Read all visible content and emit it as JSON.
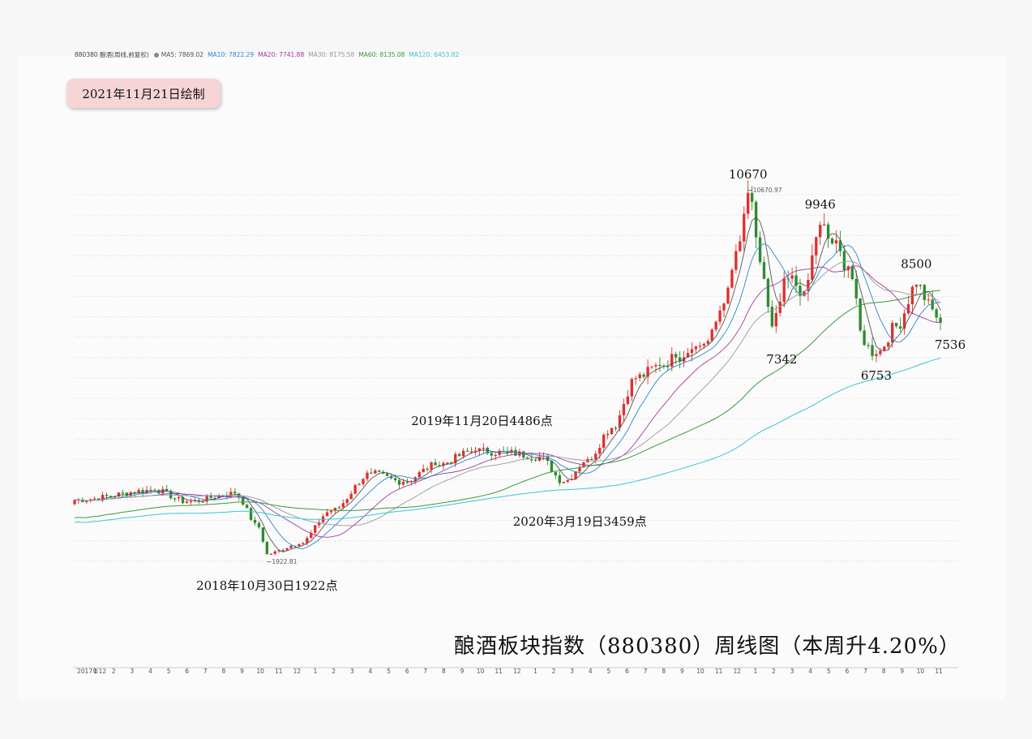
{
  "header": {
    "symbol": "880380 酿酒(周线,前复权)",
    "ma": [
      {
        "label": "MA5: 7869.02",
        "color": "#555555"
      },
      {
        "label": "MA10: 7822.29",
        "color": "#2a86d0"
      },
      {
        "label": "MA20: 7741.88",
        "color": "#a03a9e"
      },
      {
        "label": "MA30: 8175.58",
        "color": "#999999"
      },
      {
        "label": "MA60: 8135.08",
        "color": "#3a9a3a"
      },
      {
        "label": "MA120: 6453.82",
        "color": "#36c7d6"
      }
    ]
  },
  "badge": "2021年11月21日绘制",
  "title": "酿酒板块指数（880380）周线图（本周升4.20%）",
  "chart_data": {
    "type": "candlestick",
    "xlabel": "",
    "ylabel": "",
    "ylim": [
      0,
      11500
    ],
    "grid": true,
    "x_ticks": [
      "2017年12",
      "1",
      "2",
      "3",
      "4",
      "5",
      "6",
      "7",
      "8",
      "9",
      "10",
      "11",
      "12",
      "1",
      "2",
      "3",
      "4",
      "5",
      "6",
      "7",
      "8",
      "9",
      "10",
      "11",
      "12",
      "1",
      "2",
      "3",
      "4",
      "5",
      "6",
      "7",
      "8",
      "9",
      "10",
      "11",
      "12",
      "1",
      "2",
      "3",
      "4",
      "5",
      "6",
      "7",
      "8",
      "9",
      "10",
      "11"
    ],
    "up_color": "#e0302e",
    "down_color": "#2e8b2e",
    "close_series": [
      {
        "week": 0,
        "close": 3260
      },
      {
        "week": 20,
        "close": 3500
      },
      {
        "week": 28,
        "close": 3220
      },
      {
        "week": 40,
        "close": 3420
      },
      {
        "week": 46,
        "close": 2600
      },
      {
        "week": 48,
        "close": 1960
      },
      {
        "week": 56,
        "close": 2200
      },
      {
        "week": 64,
        "close": 3000
      },
      {
        "week": 74,
        "close": 3900
      },
      {
        "week": 82,
        "close": 3700
      },
      {
        "week": 90,
        "close": 4100
      },
      {
        "week": 100,
        "close": 4450
      },
      {
        "week": 108,
        "close": 4400
      },
      {
        "week": 116,
        "close": 4300
      },
      {
        "week": 122,
        "close": 3700
      },
      {
        "week": 128,
        "close": 4250
      },
      {
        "week": 134,
        "close": 5000
      },
      {
        "week": 140,
        "close": 6200
      },
      {
        "week": 146,
        "close": 6500
      },
      {
        "week": 150,
        "close": 6700
      },
      {
        "week": 154,
        "close": 6900
      },
      {
        "week": 158,
        "close": 7100
      },
      {
        "week": 162,
        "close": 8000
      },
      {
        "week": 166,
        "close": 9500
      },
      {
        "week": 168,
        "close": 10670
      },
      {
        "week": 171,
        "close": 9000
      },
      {
        "week": 174,
        "close": 7450
      },
      {
        "week": 178,
        "close": 8600
      },
      {
        "week": 182,
        "close": 8300
      },
      {
        "week": 186,
        "close": 9900
      },
      {
        "week": 189,
        "close": 9450
      },
      {
        "week": 193,
        "close": 8900
      },
      {
        "week": 197,
        "close": 7000
      },
      {
        "week": 200,
        "close": 6780
      },
      {
        "week": 205,
        "close": 7450
      },
      {
        "week": 210,
        "close": 8450
      },
      {
        "week": 214,
        "close": 7860
      },
      {
        "week": 216,
        "close": 7536
      }
    ],
    "annotations": [
      {
        "label": "10670",
        "week": 168,
        "value": 10670,
        "position": "above"
      },
      {
        "label": "10670.97",
        "week": 168,
        "value": 10670,
        "position": "right"
      },
      {
        "label": "9946",
        "week": 186,
        "value": 9946,
        "position": "above"
      },
      {
        "label": "8500",
        "week": 210,
        "value": 8500,
        "position": "above"
      },
      {
        "label": "7342",
        "week": 174,
        "value": 7342,
        "position": "below"
      },
      {
        "label": "7536",
        "week": 216,
        "value": 7536,
        "position": "below-right"
      },
      {
        "label": "6753",
        "week": 200,
        "value": 6753,
        "position": "below"
      },
      {
        "label": "2019年11月20日4486点",
        "week": 100,
        "value": 4486,
        "position": "above"
      },
      {
        "label": "2020年3月19日3459点",
        "week": 122,
        "value": 3459,
        "position": "below"
      },
      {
        "label": "2018年10月30日1922点",
        "week": 48,
        "value": 1922,
        "position": "below"
      },
      {
        "label": "1922.81",
        "week": 48,
        "value": 1922,
        "position": "right"
      }
    ]
  }
}
